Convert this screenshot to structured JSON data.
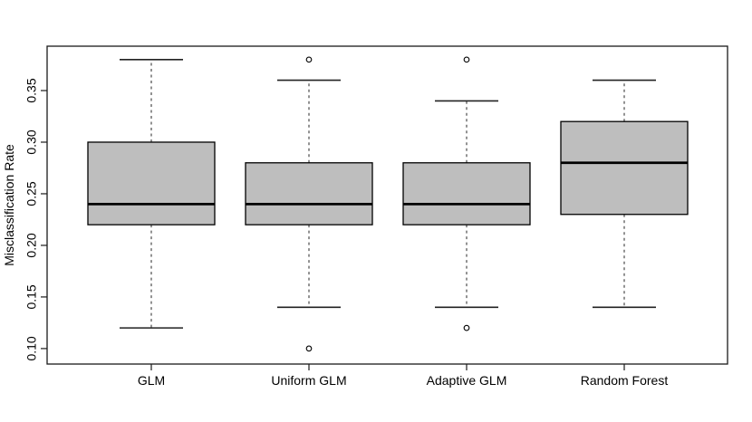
{
  "chart_data": {
    "type": "boxplot",
    "title": "",
    "xlabel": "",
    "ylabel": "Misclassification Rate",
    "ylim": [
      0.085,
      0.393
    ],
    "yticks": [
      0.1,
      0.15,
      0.2,
      0.25,
      0.3,
      0.35
    ],
    "ytick_labels": [
      "0.10",
      "0.15",
      "0.20",
      "0.25",
      "0.30",
      "0.35"
    ],
    "grid": false,
    "legend": "none",
    "categories": [
      "GLM",
      "Uniform GLM",
      "Adaptive GLM",
      "Random Forest"
    ],
    "boxes": [
      {
        "label": "GLM",
        "whisker_low": 0.12,
        "q1": 0.22,
        "median": 0.24,
        "q3": 0.3,
        "whisker_high": 0.38,
        "outliers": []
      },
      {
        "label": "Uniform GLM",
        "whisker_low": 0.14,
        "q1": 0.22,
        "median": 0.24,
        "q3": 0.28,
        "whisker_high": 0.36,
        "outliers": [
          0.1,
          0.38
        ]
      },
      {
        "label": "Adaptive GLM",
        "whisker_low": 0.14,
        "q1": 0.22,
        "median": 0.24,
        "q3": 0.28,
        "whisker_high": 0.34,
        "outliers": [
          0.12,
          0.38
        ]
      },
      {
        "label": "Random Forest",
        "whisker_low": 0.14,
        "q1": 0.23,
        "median": 0.28,
        "q3": 0.32,
        "whisker_high": 0.36,
        "outliers": []
      }
    ],
    "colors": {
      "background": "#FFFFFF",
      "box_fill": "#BEBEBE",
      "box_border": "#000000",
      "median": "#000000",
      "whisker": "#4A4A4A",
      "staple": "#222222",
      "outlier": "#000000",
      "axis": "#1A1A1A",
      "text": "#000000"
    }
  }
}
